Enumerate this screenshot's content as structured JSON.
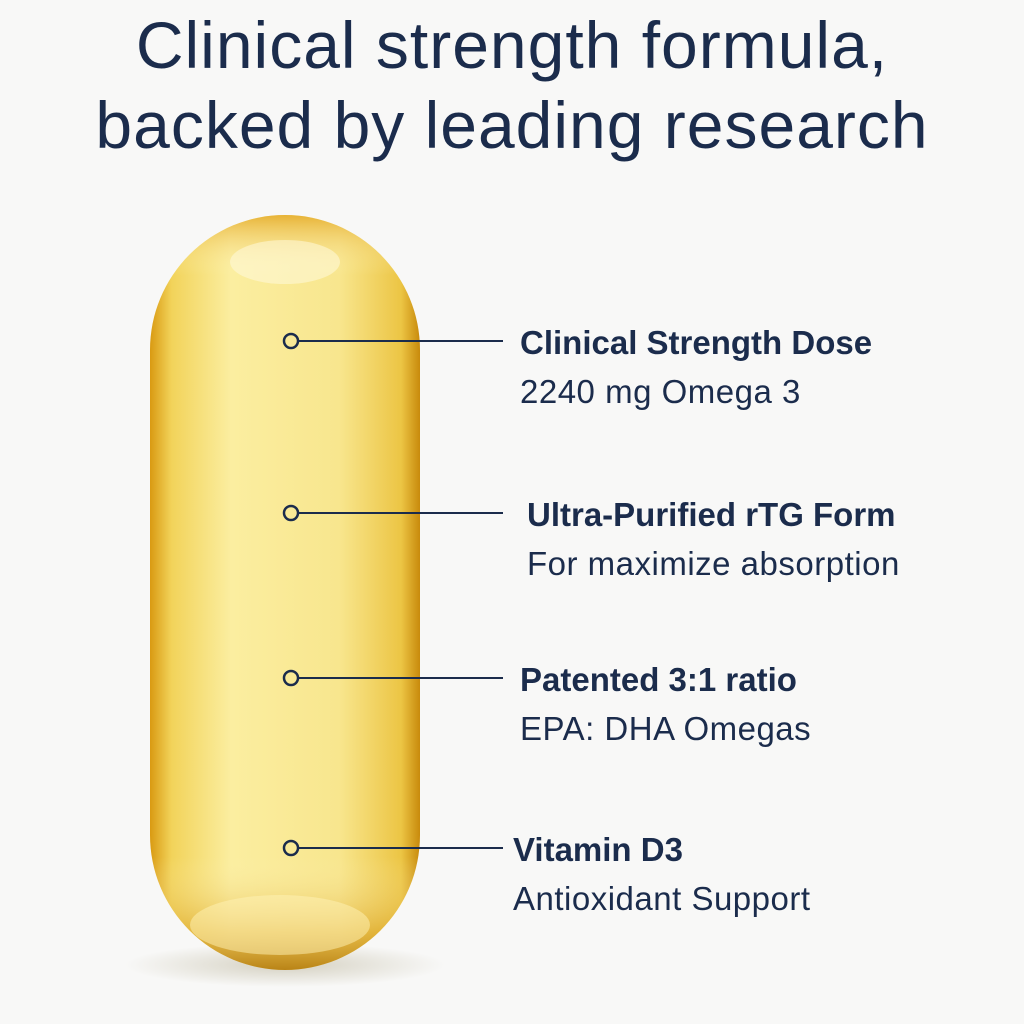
{
  "headline": [
    "Clinical strength formula,",
    "backed by leading research"
  ],
  "features": [
    {
      "title": "Clinical Strength Dose",
      "subtitle": "2240 mg Omega 3"
    },
    {
      "title": "Ultra-Purified rTG Form",
      "subtitle": "For maximize absorption"
    },
    {
      "title": "Patented 3:1 ratio",
      "subtitle": "EPA: DHA Omegas"
    },
    {
      "title": "Vitamin D3",
      "subtitle": "Antioxidant Support"
    }
  ]
}
